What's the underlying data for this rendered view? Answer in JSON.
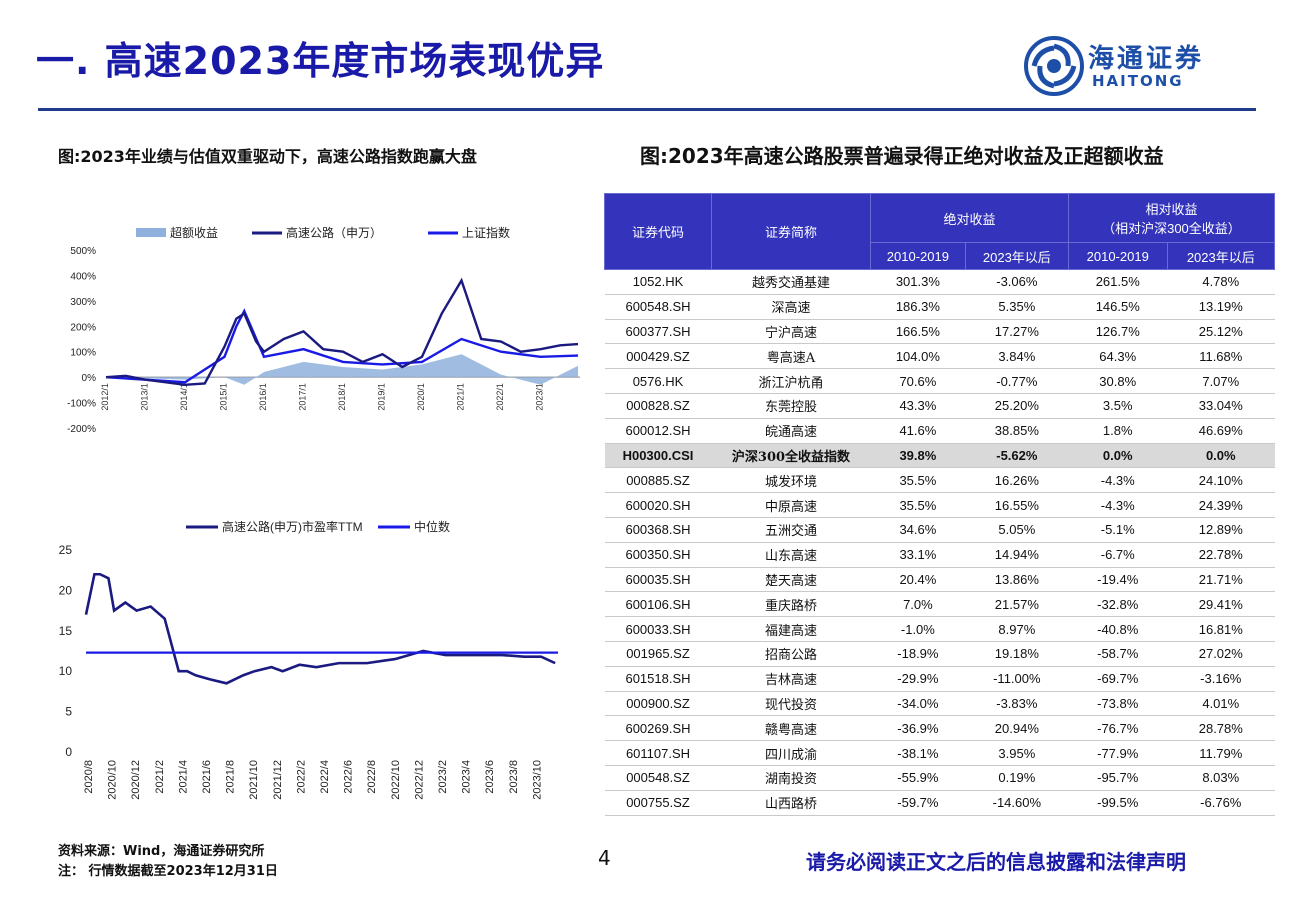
{
  "header": {
    "title": "一. 高速2023年度市场表现优异",
    "logo_text": "海通证券",
    "logo_sub": "HAITONG"
  },
  "left_caption": "图:2023年业绩与估值双重驱动下，高速公路指数跑赢大盘",
  "right_caption": "图:2023年高速公路股票普遍录得正绝对收益及正超额收益",
  "chart_data": [
    {
      "type": "line",
      "legend": [
        "超额收益",
        "高速公路（申万）",
        "上证指数"
      ],
      "y_ticks": [
        "500%",
        "400%",
        "300%",
        "200%",
        "100%",
        "0%",
        "-100%",
        "-200%"
      ],
      "ylim": [
        -200,
        500
      ],
      "x_ticks": [
        "2012/1",
        "2013/1",
        "2014/1",
        "2015/1",
        "2016/1",
        "2017/1",
        "2018/1",
        "2019/1",
        "2020/1",
        "2021/1",
        "2022/1",
        "2023/1"
      ],
      "series": [
        {
          "name": "高速公路（申万）",
          "x": [
            2012,
            2012.5,
            2013,
            2013.5,
            2014,
            2014.5,
            2015,
            2015.3,
            2015.5,
            2015.8,
            2016,
            2016.5,
            2017,
            2017.5,
            2018,
            2018.5,
            2019,
            2019.5,
            2020,
            2020.5,
            2021,
            2021.5,
            2022,
            2022.5,
            2023,
            2023.5,
            2023.95
          ],
          "values": [
            0,
            5,
            -10,
            -20,
            -30,
            -25,
            120,
            230,
            250,
            140,
            100,
            150,
            180,
            110,
            100,
            60,
            90,
            40,
            80,
            250,
            380,
            150,
            140,
            100,
            110,
            125,
            130
          ]
        },
        {
          "name": "上证指数",
          "x": [
            2012,
            2013,
            2014,
            2015,
            2015.3,
            2015.5,
            2016,
            2017,
            2018,
            2019,
            2020,
            2021,
            2021.4,
            2022,
            2023,
            2023.95
          ],
          "values": [
            0,
            -10,
            -20,
            80,
            200,
            260,
            80,
            110,
            60,
            50,
            60,
            150,
            130,
            100,
            80,
            85
          ]
        },
        {
          "name": "超额收益",
          "x": [
            2012,
            2014,
            2015,
            2015.5,
            2016,
            2017,
            2018,
            2019,
            2020,
            2021,
            2022,
            2023,
            2023.95
          ],
          "values": [
            0,
            -10,
            0,
            -30,
            20,
            60,
            40,
            30,
            50,
            90,
            10,
            -30,
            45
          ]
        }
      ]
    },
    {
      "type": "line",
      "legend": [
        "高速公路(申万)市盈率TTM",
        "中位数"
      ],
      "y_ticks": [
        "25",
        "20",
        "15",
        "10",
        "5",
        "0"
      ],
      "ylim": [
        0,
        25
      ],
      "x_ticks": [
        "2020/8",
        "2020/10",
        "2020/12",
        "2021/2",
        "2021/4",
        "2021/6",
        "2021/8",
        "2021/10",
        "2021/12",
        "2022/2",
        "2022/4",
        "2022/6",
        "2022/8",
        "2022/10",
        "2022/12",
        "2023/2",
        "2023/4",
        "2023/6",
        "2023/8",
        "2023/10"
      ],
      "series": [
        {
          "name": "高速公路(申万)市盈率TTM",
          "x": [
            0,
            0.3,
            0.5,
            0.8,
            1.0,
            1.4,
            1.8,
            2.3,
            2.8,
            3.3,
            3.6,
            3.9,
            4.4,
            5.0,
            5.6,
            6.0,
            6.6,
            7.0,
            7.6,
            8.2,
            9.0,
            10.0,
            11.0,
            12.0,
            12.8,
            13.8,
            14.8,
            15.6,
            16.2,
            16.7
          ],
          "values": [
            17,
            22,
            22,
            21.5,
            17.5,
            18.5,
            17.5,
            18,
            16.5,
            10,
            10,
            9.5,
            9,
            8.5,
            9.5,
            10,
            10.5,
            10,
            10.8,
            10.5,
            11,
            11,
            11.5,
            12.5,
            12,
            12,
            12,
            11.8,
            11.8,
            11
          ]
        },
        {
          "name": "中位数",
          "x": [
            0,
            16.8
          ],
          "values": [
            12.3,
            12.3
          ]
        }
      ]
    }
  ],
  "table": {
    "headers": {
      "code": "证券代码",
      "name": "证券简称",
      "abs": "绝对收益",
      "rel": "相对收益",
      "rel_sub": "（相对沪深300全收益）",
      "p1": "2010-2019",
      "p2": "2023年以后",
      "p3": "2010-2019",
      "p4": "2023年以后"
    },
    "rows": [
      [
        "1052.HK",
        "越秀交通基建",
        "301.3%",
        "-3.06%",
        "261.5%",
        "4.78%"
      ],
      [
        "600548.SH",
        "深高速",
        "186.3%",
        "5.35%",
        "146.5%",
        "13.19%"
      ],
      [
        "600377.SH",
        "宁沪高速",
        "166.5%",
        "17.27%",
        "126.7%",
        "25.12%"
      ],
      [
        "000429.SZ",
        "粤高速A",
        "104.0%",
        "3.84%",
        "64.3%",
        "11.68%"
      ],
      [
        "0576.HK",
        "浙江沪杭甬",
        "70.6%",
        "-0.77%",
        "30.8%",
        "7.07%"
      ],
      [
        "000828.SZ",
        "东莞控股",
        "43.3%",
        "25.20%",
        "3.5%",
        "33.04%"
      ],
      [
        "600012.SH",
        "皖通高速",
        "41.6%",
        "38.85%",
        "1.8%",
        "46.69%"
      ],
      [
        "H00300.CSI",
        "沪深300全收益指数",
        "39.8%",
        "-5.62%",
        "0.0%",
        "0.0%"
      ],
      [
        "000885.SZ",
        "城发环境",
        "35.5%",
        "16.26%",
        "-4.3%",
        "24.10%"
      ],
      [
        "600020.SH",
        "中原高速",
        "35.5%",
        "16.55%",
        "-4.3%",
        "24.39%"
      ],
      [
        "600368.SH",
        "五洲交通",
        "34.6%",
        "5.05%",
        "-5.1%",
        "12.89%"
      ],
      [
        "600350.SH",
        "山东高速",
        "33.1%",
        "14.94%",
        "-6.7%",
        "22.78%"
      ],
      [
        "600035.SH",
        "楚天高速",
        "20.4%",
        "13.86%",
        "-19.4%",
        "21.71%"
      ],
      [
        "600106.SH",
        "重庆路桥",
        "7.0%",
        "21.57%",
        "-32.8%",
        "29.41%"
      ],
      [
        "600033.SH",
        "福建高速",
        "-1.0%",
        "8.97%",
        "-40.8%",
        "16.81%"
      ],
      [
        "001965.SZ",
        "招商公路",
        "-18.9%",
        "19.18%",
        "-58.7%",
        "27.02%"
      ],
      [
        "601518.SH",
        "吉林高速",
        "-29.9%",
        "-11.00%",
        "-69.7%",
        "-3.16%"
      ],
      [
        "000900.SZ",
        "现代投资",
        "-34.0%",
        "-3.83%",
        "-73.8%",
        "4.01%"
      ],
      [
        "600269.SH",
        "赣粤高速",
        "-36.9%",
        "20.94%",
        "-76.7%",
        "28.78%"
      ],
      [
        "601107.SH",
        "四川成渝",
        "-38.1%",
        "3.95%",
        "-77.9%",
        "11.79%"
      ],
      [
        "000548.SZ",
        "湖南投资",
        "-55.9%",
        "0.19%",
        "-95.7%",
        "8.03%"
      ],
      [
        "000755.SZ",
        "山西路桥",
        "-59.7%",
        "-14.60%",
        "-99.5%",
        "-6.76%"
      ]
    ],
    "bold_row": 7
  },
  "footer": {
    "source": "资料来源：Wind，海通证券研究所",
    "note": "注：  行情数据截至2023年12月31日",
    "page": "4",
    "disclaimer": "请务必阅读正文之后的信息披露和法律声明"
  },
  "colors": {
    "title": "#1a1aa8",
    "series_dark": "#1a1a80",
    "series_blue": "#1a1ae6",
    "excess": "#8fb0dc"
  }
}
